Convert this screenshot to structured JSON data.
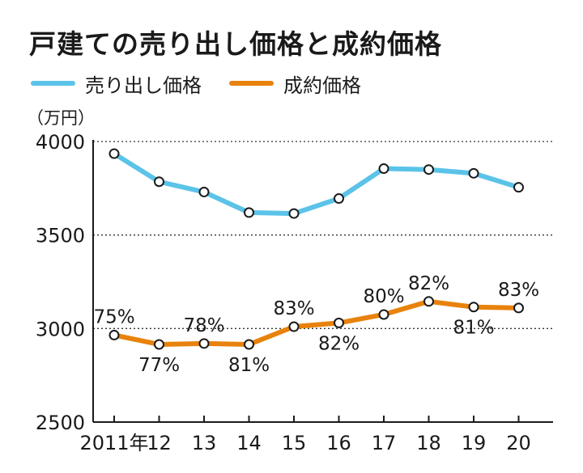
{
  "chart_data": {
    "type": "line",
    "title": "戸建ての売り出し価格と成約価格",
    "unit_label": "（万円）",
    "categories": [
      "2011年",
      "12",
      "13",
      "14",
      "15",
      "16",
      "17",
      "18",
      "19",
      "20"
    ],
    "ylim": [
      2500,
      4000
    ],
    "yticks": [
      "4000",
      "3500",
      "3000",
      "2500"
    ],
    "grid": "horizontal dotted at 4000, 3500, 3000",
    "legend_placement": "top-left",
    "series": [
      {
        "name": "売り出し価格",
        "color": "#5bc3e8",
        "values": [
          3935,
          3785,
          3730,
          3620,
          3615,
          3695,
          3855,
          3850,
          3830,
          3755
        ]
      },
      {
        "name": "成約価格",
        "color": "#e8820c",
        "values": [
          2965,
          2915,
          2920,
          2915,
          3010,
          3030,
          3075,
          3145,
          3115,
          3110
        ],
        "labels": [
          "75%",
          "77%",
          "78%",
          "81%",
          "83%",
          "82%",
          "80%",
          "82%",
          "81%",
          "83%"
        ]
      }
    ]
  }
}
